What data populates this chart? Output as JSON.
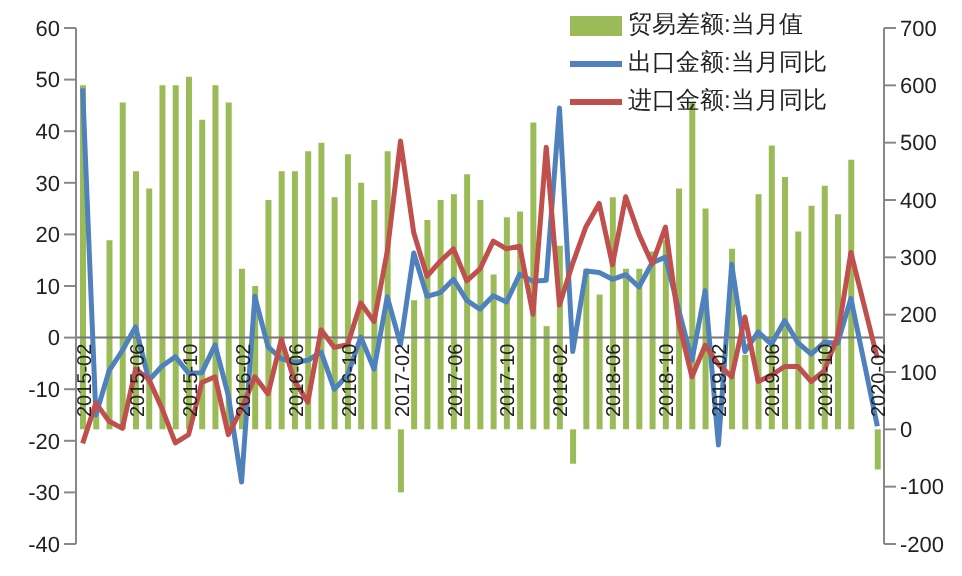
{
  "chart_data": {
    "type": "bar",
    "categories": [
      "2015-02",
      null,
      null,
      null,
      "2015-06",
      null,
      null,
      null,
      "2015-10",
      null,
      null,
      null,
      "2016-02",
      null,
      null,
      null,
      "2016-06",
      null,
      null,
      null,
      "2016-10",
      null,
      null,
      null,
      "2017-02",
      null,
      null,
      null,
      "2017-06",
      null,
      null,
      null,
      "2017-10",
      null,
      null,
      null,
      "2018-02",
      null,
      null,
      null,
      "2018-06",
      null,
      null,
      null,
      "2018-10",
      null,
      null,
      null,
      "2019-02",
      null,
      null,
      null,
      "2019-06",
      null,
      null,
      null,
      "2019-10",
      null,
      null,
      null,
      "2020-02"
    ],
    "series": [
      {
        "name": "贸易差额:当月值",
        "axis": "y2",
        "color": "#9bbb59",
        "values": [
          600,
          30,
          330,
          570,
          450,
          420,
          600,
          600,
          615,
          540,
          600,
          570,
          280,
          250,
          400,
          450,
          450,
          485,
          500,
          405,
          480,
          430,
          400,
          485,
          -110,
          225,
          365,
          400,
          410,
          445,
          400,
          270,
          370,
          380,
          535,
          180,
          320,
          -60,
          280,
          235,
          405,
          280,
          280,
          310,
          330,
          420,
          570,
          385,
          null,
          315,
          130,
          410,
          495,
          440,
          345,
          390,
          425,
          375,
          470,
          null,
          -70
        ]
      },
      {
        "name": "出口金额:当月同比",
        "type": "line",
        "color": "#4f81bd",
        "values": [
          48.3,
          -15,
          -6.4,
          -2.5,
          2.1,
          -8.3,
          -5.5,
          -3.7,
          -6.9,
          -6.8,
          -1.4,
          -11.2,
          -28,
          8,
          -1.8,
          -4.1,
          -4.8,
          -4.4,
          -2.8,
          -10,
          -7.3,
          0.1,
          -6.1,
          7.9,
          -1.3,
          16.4,
          8,
          8.7,
          11.3,
          7.2,
          5.5,
          8.1,
          6.9,
          12.3,
          10.9,
          11.1,
          44.5,
          -2.7,
          12.9,
          12.6,
          11.3,
          12.2,
          9.8,
          14.5,
          15.6,
          5.4,
          -4.4,
          9.1,
          -20.8,
          14.2,
          -2.7,
          1.1,
          -1.3,
          3.3,
          -1,
          -3.2,
          -0.9,
          -1.1,
          7.6,
          null,
          -17.2
        ]
      },
      {
        "name": "进口金额:当月同比",
        "type": "line",
        "color": "#c0504d",
        "values": [
          -20.5,
          -12.7,
          -16.2,
          -17.6,
          -6.1,
          -8.1,
          -13.8,
          -20.4,
          -18.8,
          -8.7,
          -7.6,
          -18.8,
          -13.8,
          -7.6,
          -10.9,
          -0.4,
          -8.4,
          -12.5,
          1.5,
          -1.9,
          -1.4,
          6.7,
          3.1,
          16.7,
          38.1,
          20.3,
          11.9,
          14.8,
          17.2,
          11,
          13.3,
          18.7,
          17.2,
          17.7,
          4.5,
          36.9,
          6.3,
          14.4,
          21.5,
          26,
          14.1,
          27.3,
          20,
          14.3,
          21.4,
          3,
          -7.6,
          -1.5,
          -5.2,
          -7.6,
          4,
          -8.5,
          -7.3,
          -5.6,
          -5.6,
          -8.5,
          -6.4,
          0.3,
          16.5,
          null,
          -4
        ]
      }
    ],
    "ylim": [
      -40,
      60
    ],
    "yticks": [
      -40,
      -30,
      -20,
      -10,
      0,
      10,
      20,
      30,
      40,
      50,
      60
    ],
    "y2lim": [
      -200,
      700
    ],
    "y2ticks": [
      -200,
      -100,
      0,
      100,
      200,
      300,
      400,
      500,
      600,
      700
    ],
    "legend": "top right"
  }
}
